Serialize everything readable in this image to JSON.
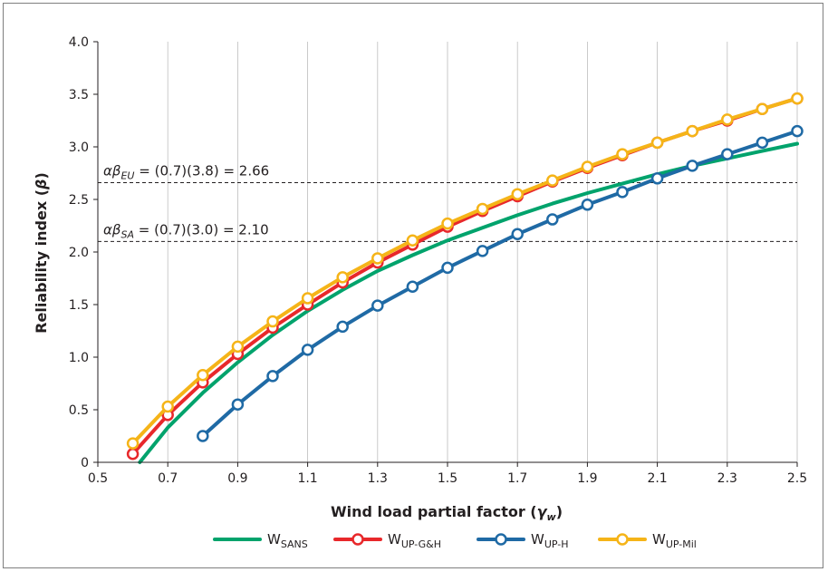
{
  "chart_data": {
    "type": "line",
    "xlabel": "Wind load partial factor (",
    "xlabel_symbol": "γ",
    "xlabel_sub": "w",
    "xlabel_end": ")",
    "ylabel": "Reliability index (",
    "ylabel_symbol": "β",
    "ylabel_end": ")",
    "xlim": [
      0.5,
      2.5
    ],
    "ylim": [
      0,
      4.0
    ],
    "x_ticks": [
      0.5,
      0.7,
      0.9,
      1.1,
      1.3,
      1.5,
      1.7,
      1.9,
      2.1,
      2.3,
      2.5
    ],
    "y_ticks": [
      0,
      0.5,
      1.0,
      1.5,
      2.0,
      2.5,
      3.0,
      3.5,
      4.0
    ],
    "x_tick_labels": [
      "0.5",
      "0.7",
      "0.9",
      "1.1",
      "1.3",
      "1.5",
      "1.7",
      "1.9",
      "2.1",
      "2.3",
      "2.5"
    ],
    "y_tick_labels": [
      "0",
      "0.5",
      "1.0",
      "1.5",
      "2.0",
      "2.5",
      "3.0",
      "3.5",
      "4.0"
    ],
    "grid": "vertical",
    "legend_position": "bottom",
    "reference_lines": [
      {
        "y": 2.66,
        "label_prefix": "αβ",
        "label_sub": "EU",
        "label_rest": " = (0.7)(3.8) = 2.66"
      },
      {
        "y": 2.1,
        "label_prefix": "αβ",
        "label_sub": "SA",
        "label_rest": " = (0.7)(3.0) = 2.10"
      }
    ],
    "series": [
      {
        "name_main": "W",
        "name_sub": "SANS",
        "color": "#00a36c",
        "markers": false,
        "x": [
          0.62,
          0.7,
          0.8,
          0.9,
          1.0,
          1.1,
          1.2,
          1.3,
          1.4,
          1.5,
          1.6,
          1.7,
          1.8,
          1.9,
          2.0,
          2.1,
          2.2,
          2.3,
          2.4,
          2.5
        ],
        "y": [
          0.0,
          0.33,
          0.66,
          0.95,
          1.21,
          1.44,
          1.64,
          1.82,
          1.97,
          2.11,
          2.23,
          2.35,
          2.46,
          2.56,
          2.65,
          2.74,
          2.82,
          2.89,
          2.96,
          3.03
        ]
      },
      {
        "name_main": "W",
        "name_sub": "UP-G&H",
        "color": "#e8282b",
        "markers": true,
        "x": [
          0.6,
          0.7,
          0.8,
          0.9,
          1.0,
          1.1,
          1.2,
          1.3,
          1.4,
          1.5,
          1.6,
          1.7,
          1.8,
          1.9,
          2.0,
          2.1,
          2.2,
          2.3,
          2.4,
          2.5
        ],
        "y": [
          0.08,
          0.45,
          0.76,
          1.03,
          1.28,
          1.5,
          1.71,
          1.9,
          2.07,
          2.24,
          2.39,
          2.53,
          2.67,
          2.8,
          2.92,
          3.04,
          3.15,
          3.25,
          3.36,
          3.46
        ]
      },
      {
        "name_main": "W",
        "name_sub": "UP-H",
        "color": "#1f6aa5",
        "markers": true,
        "x": [
          0.8,
          0.9,
          1.0,
          1.1,
          1.2,
          1.3,
          1.4,
          1.5,
          1.6,
          1.7,
          1.8,
          1.9,
          2.0,
          2.1,
          2.2,
          2.3,
          2.4,
          2.5
        ],
        "y": [
          0.25,
          0.55,
          0.82,
          1.07,
          1.29,
          1.49,
          1.67,
          1.85,
          2.01,
          2.17,
          2.31,
          2.45,
          2.57,
          2.7,
          2.82,
          2.93,
          3.04,
          3.15
        ]
      },
      {
        "name_main": "W",
        "name_sub": "UP-Mil",
        "color": "#f5b418",
        "markers": true,
        "x": [
          0.6,
          0.7,
          0.8,
          0.9,
          1.0,
          1.1,
          1.2,
          1.3,
          1.4,
          1.5,
          1.6,
          1.7,
          1.8,
          1.9,
          2.0,
          2.1,
          2.2,
          2.3,
          2.4,
          2.5
        ],
        "y": [
          0.18,
          0.53,
          0.83,
          1.1,
          1.34,
          1.56,
          1.76,
          1.94,
          2.11,
          2.27,
          2.41,
          2.55,
          2.68,
          2.81,
          2.93,
          3.04,
          3.15,
          3.26,
          3.36,
          3.46
        ]
      }
    ]
  }
}
